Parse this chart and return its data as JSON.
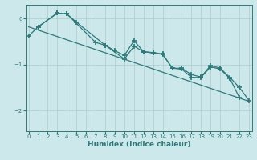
{
  "xlabel": "Humidex (Indice chaleur)",
  "bg_color": "#cce8ea",
  "line_color": "#2d7a7a",
  "grid_color": "#aacccc",
  "xlim": [
    -0.3,
    23.3
  ],
  "ylim": [
    -2.45,
    0.3
  ],
  "yticks": [
    0,
    -1,
    -2
  ],
  "xticks": [
    0,
    1,
    2,
    3,
    4,
    5,
    6,
    7,
    8,
    9,
    10,
    11,
    12,
    13,
    14,
    15,
    16,
    17,
    18,
    19,
    20,
    21,
    22,
    23
  ],
  "line1_x": [
    0,
    1,
    3,
    4,
    7,
    8,
    10,
    11,
    12,
    13,
    14,
    15,
    16,
    17,
    18,
    19,
    20,
    21,
    22
  ],
  "line1_y": [
    -0.38,
    -0.18,
    0.12,
    0.1,
    -0.52,
    -0.58,
    -0.88,
    -0.6,
    -0.72,
    -0.75,
    -0.78,
    -1.08,
    -1.1,
    -1.28,
    -1.28,
    -1.05,
    -1.1,
    -1.3,
    -1.72
  ],
  "line2_x": [
    1,
    3,
    4,
    5,
    8,
    9,
    10,
    11,
    12,
    13,
    14,
    15,
    16,
    17,
    18,
    19,
    20,
    21,
    22,
    23
  ],
  "line2_y": [
    -0.18,
    0.12,
    0.1,
    -0.08,
    -0.58,
    -0.7,
    -0.8,
    -0.48,
    -0.72,
    -0.74,
    -0.77,
    -1.08,
    -1.08,
    -1.22,
    -1.27,
    -1.02,
    -1.08,
    -1.28,
    -1.5,
    -1.78
  ],
  "line3_x": [
    0,
    23
  ],
  "line3_y": [
    -0.18,
    -1.8
  ]
}
